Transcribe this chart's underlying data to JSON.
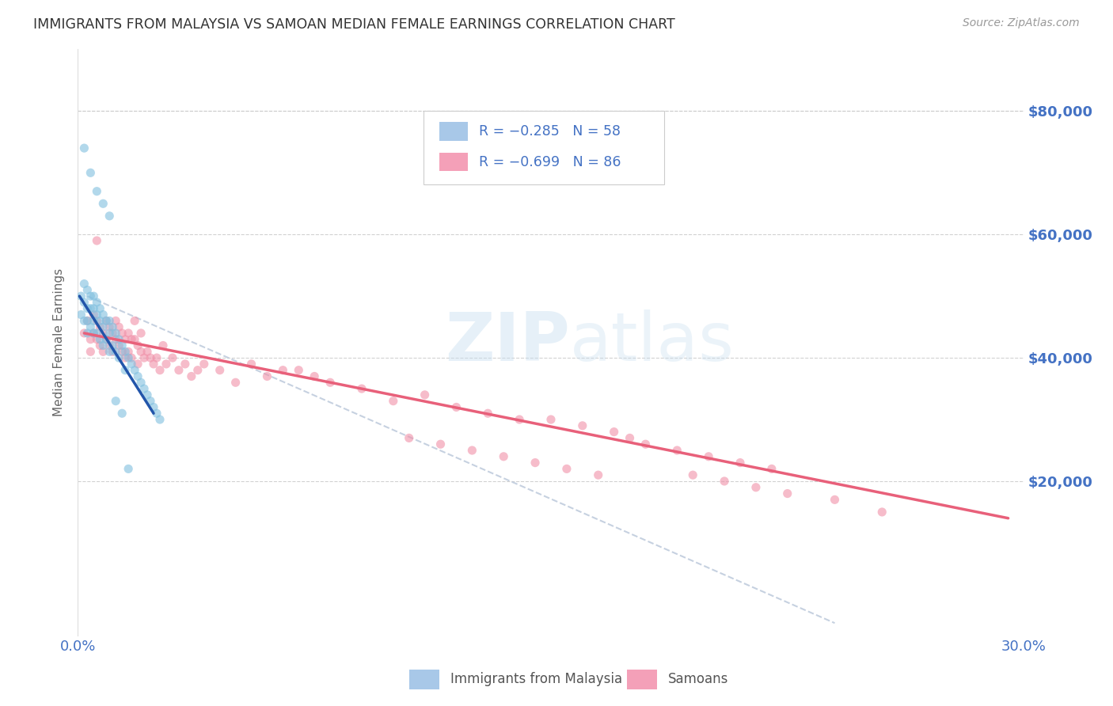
{
  "title": "IMMIGRANTS FROM MALAYSIA VS SAMOAN MEDIAN FEMALE EARNINGS CORRELATION CHART",
  "source": "Source: ZipAtlas.com",
  "ylabel": "Median Female Earnings",
  "ytick_labels": [
    "$80,000",
    "$60,000",
    "$40,000",
    "$20,000"
  ],
  "ytick_values": [
    80000,
    60000,
    40000,
    20000
  ],
  "ylim": [
    -5000,
    90000
  ],
  "xlim": [
    0.0,
    0.3
  ],
  "watermark_zip": "ZIP",
  "watermark_atlas": "atlas",
  "malaysia_color": "#7fbfdf",
  "malaysia_edge": "#5599cc",
  "samoan_color": "#f090a8",
  "samoan_edge": "#e06080",
  "malaysia_line_color": "#2255aa",
  "samoan_line_color": "#e8607a",
  "dashed_line_color": "#c0ccdd",
  "background_color": "#ffffff",
  "title_color": "#333333",
  "axis_tick_color": "#4472c4",
  "grid_color": "#cccccc",
  "legend_box_color": "#a8c8e8",
  "legend_pink_color": "#f4a0b8",
  "malaysia_scatter_x": [
    0.001,
    0.001,
    0.002,
    0.002,
    0.002,
    0.003,
    0.003,
    0.003,
    0.003,
    0.004,
    0.004,
    0.004,
    0.005,
    0.005,
    0.005,
    0.005,
    0.006,
    0.006,
    0.006,
    0.007,
    0.007,
    0.007,
    0.008,
    0.008,
    0.008,
    0.009,
    0.009,
    0.01,
    0.01,
    0.01,
    0.011,
    0.011,
    0.012,
    0.012,
    0.013,
    0.013,
    0.014,
    0.015,
    0.015,
    0.016,
    0.017,
    0.018,
    0.019,
    0.02,
    0.021,
    0.022,
    0.023,
    0.024,
    0.025,
    0.026,
    0.002,
    0.004,
    0.006,
    0.008,
    0.01,
    0.012,
    0.014,
    0.016
  ],
  "malaysia_scatter_y": [
    50000,
    47000,
    52000,
    49000,
    46000,
    51000,
    48000,
    46000,
    44000,
    50000,
    48000,
    45000,
    50000,
    48000,
    46000,
    44000,
    49000,
    47000,
    44000,
    48000,
    46000,
    43000,
    47000,
    45000,
    42000,
    46000,
    43000,
    46000,
    44000,
    41000,
    45000,
    42000,
    44000,
    41000,
    43000,
    40000,
    42000,
    41000,
    38000,
    40000,
    39000,
    38000,
    37000,
    36000,
    35000,
    34000,
    33000,
    32000,
    31000,
    30000,
    74000,
    70000,
    67000,
    65000,
    63000,
    33000,
    31000,
    22000
  ],
  "samoan_scatter_x": [
    0.002,
    0.003,
    0.004,
    0.004,
    0.005,
    0.005,
    0.006,
    0.006,
    0.007,
    0.007,
    0.008,
    0.008,
    0.009,
    0.009,
    0.01,
    0.01,
    0.011,
    0.011,
    0.012,
    0.012,
    0.013,
    0.013,
    0.014,
    0.014,
    0.015,
    0.015,
    0.016,
    0.016,
    0.017,
    0.017,
    0.018,
    0.018,
    0.019,
    0.019,
    0.02,
    0.02,
    0.021,
    0.022,
    0.023,
    0.024,
    0.025,
    0.026,
    0.027,
    0.028,
    0.03,
    0.032,
    0.034,
    0.036,
    0.038,
    0.04,
    0.045,
    0.05,
    0.055,
    0.06,
    0.065,
    0.07,
    0.075,
    0.08,
    0.09,
    0.1,
    0.11,
    0.12,
    0.13,
    0.14,
    0.15,
    0.16,
    0.17,
    0.175,
    0.18,
    0.19,
    0.2,
    0.21,
    0.22,
    0.195,
    0.205,
    0.215,
    0.165,
    0.155,
    0.145,
    0.135,
    0.125,
    0.115,
    0.105,
    0.225,
    0.24,
    0.255
  ],
  "samoan_scatter_y": [
    44000,
    46000,
    43000,
    41000,
    47000,
    44000,
    46000,
    43000,
    45000,
    42000,
    44000,
    41000,
    46000,
    43000,
    45000,
    42000,
    44000,
    41000,
    46000,
    43000,
    45000,
    42000,
    44000,
    41000,
    43000,
    40000,
    44000,
    41000,
    43000,
    40000,
    46000,
    43000,
    42000,
    39000,
    44000,
    41000,
    40000,
    41000,
    40000,
    39000,
    40000,
    38000,
    42000,
    39000,
    40000,
    38000,
    39000,
    37000,
    38000,
    39000,
    38000,
    36000,
    39000,
    37000,
    38000,
    38000,
    37000,
    36000,
    35000,
    33000,
    34000,
    32000,
    31000,
    30000,
    30000,
    29000,
    28000,
    27000,
    26000,
    25000,
    24000,
    23000,
    22000,
    21000,
    20000,
    19000,
    21000,
    22000,
    23000,
    24000,
    25000,
    26000,
    27000,
    18000,
    17000,
    15000
  ],
  "samoan_outlier_x": [
    0.006
  ],
  "samoan_outlier_y": [
    59000
  ],
  "malaysia_line_x": [
    0.0005,
    0.024
  ],
  "malaysia_line_y": [
    50000,
    31000
  ],
  "samoan_line_x": [
    0.002,
    0.295
  ],
  "samoan_line_y": [
    44000,
    14000
  ],
  "dashed_line_x": [
    0.003,
    0.24
  ],
  "dashed_line_y": [
    50000,
    -3000
  ]
}
